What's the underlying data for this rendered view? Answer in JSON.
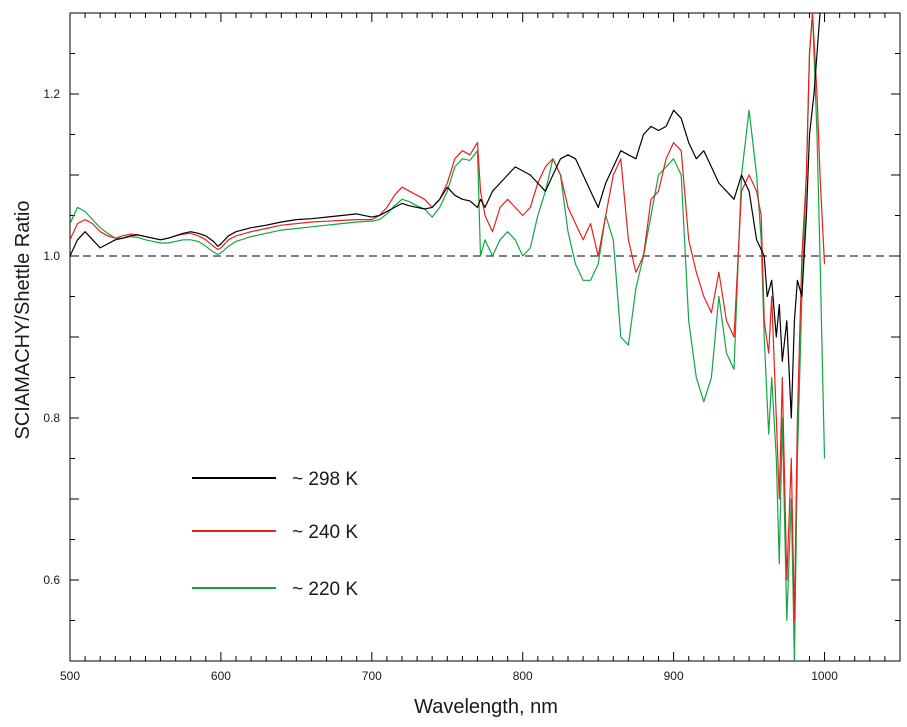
{
  "chart_data": {
    "type": "line",
    "title": "",
    "xlabel": "Wavelength, nm",
    "ylabel": "SCIAMACHY/Shettle Ratio",
    "xlim": [
      500,
      1050
    ],
    "ylim": [
      0.5,
      1.3
    ],
    "x_ticks": [
      500,
      600,
      700,
      800,
      900,
      1000
    ],
    "y_ticks": [
      0.6,
      0.8,
      1.0,
      1.2
    ],
    "reference_line": {
      "y": 1.0,
      "style": "dashed"
    },
    "grid": false,
    "legend_position": "bottom-left",
    "series": [
      {
        "name": "~ 298 K",
        "color": "#000000",
        "x": [
          500,
          505,
          510,
          515,
          520,
          525,
          530,
          535,
          540,
          545,
          550,
          555,
          560,
          565,
          570,
          575,
          580,
          585,
          590,
          595,
          598,
          600,
          605,
          610,
          620,
          630,
          640,
          650,
          660,
          670,
          680,
          690,
          700,
          705,
          710,
          715,
          720,
          725,
          730,
          735,
          740,
          745,
          750,
          755,
          760,
          765,
          770,
          772,
          775,
          780,
          785,
          790,
          795,
          800,
          805,
          810,
          815,
          820,
          825,
          830,
          835,
          840,
          845,
          850,
          855,
          860,
          865,
          870,
          875,
          880,
          885,
          890,
          895,
          900,
          905,
          910,
          915,
          920,
          925,
          930,
          935,
          940,
          945,
          950,
          955,
          960,
          962,
          965,
          968,
          970,
          972,
          975,
          978,
          980,
          982,
          985,
          988,
          990,
          993,
          995,
          997,
          1000
        ],
        "y": [
          1.0,
          1.02,
          1.03,
          1.02,
          1.01,
          1.015,
          1.02,
          1.022,
          1.025,
          1.026,
          1.024,
          1.022,
          1.02,
          1.022,
          1.025,
          1.028,
          1.03,
          1.028,
          1.025,
          1.018,
          1.012,
          1.015,
          1.025,
          1.03,
          1.035,
          1.038,
          1.042,
          1.045,
          1.046,
          1.048,
          1.05,
          1.052,
          1.048,
          1.05,
          1.055,
          1.06,
          1.065,
          1.062,
          1.06,
          1.058,
          1.06,
          1.07,
          1.085,
          1.075,
          1.07,
          1.068,
          1.06,
          1.07,
          1.06,
          1.08,
          1.09,
          1.1,
          1.11,
          1.105,
          1.1,
          1.09,
          1.08,
          1.1,
          1.12,
          1.125,
          1.12,
          1.1,
          1.08,
          1.06,
          1.09,
          1.11,
          1.13,
          1.125,
          1.12,
          1.15,
          1.16,
          1.155,
          1.16,
          1.18,
          1.17,
          1.14,
          1.12,
          1.13,
          1.11,
          1.09,
          1.08,
          1.07,
          1.1,
          1.08,
          1.02,
          1.0,
          0.95,
          0.97,
          0.9,
          0.94,
          0.87,
          0.92,
          0.8,
          0.92,
          0.97,
          0.95,
          1.05,
          1.15,
          1.2,
          1.25,
          1.3,
          1.32
        ]
      },
      {
        "name": "~ 240 K",
        "color": "#e8201c",
        "x": [
          500,
          505,
          510,
          515,
          520,
          525,
          530,
          535,
          540,
          545,
          550,
          555,
          560,
          565,
          570,
          575,
          580,
          585,
          590,
          595,
          598,
          600,
          605,
          610,
          620,
          630,
          640,
          650,
          660,
          670,
          680,
          690,
          700,
          705,
          710,
          715,
          720,
          725,
          730,
          735,
          740,
          745,
          750,
          755,
          760,
          765,
          770,
          772,
          775,
          780,
          785,
          790,
          795,
          800,
          805,
          810,
          815,
          820,
          825,
          830,
          835,
          840,
          845,
          850,
          855,
          860,
          865,
          870,
          875,
          880,
          885,
          890,
          895,
          900,
          905,
          910,
          915,
          920,
          925,
          930,
          935,
          940,
          945,
          950,
          955,
          958,
          960,
          963,
          965,
          968,
          970,
          972,
          975,
          978,
          980,
          982,
          985,
          988,
          990,
          992,
          995,
          997,
          1000
        ],
        "y": [
          1.02,
          1.04,
          1.045,
          1.04,
          1.03,
          1.025,
          1.022,
          1.025,
          1.027,
          1.026,
          1.024,
          1.022,
          1.02,
          1.022,
          1.025,
          1.027,
          1.028,
          1.025,
          1.02,
          1.012,
          1.008,
          1.01,
          1.02,
          1.025,
          1.03,
          1.034,
          1.038,
          1.04,
          1.042,
          1.043,
          1.044,
          1.045,
          1.045,
          1.05,
          1.06,
          1.075,
          1.085,
          1.08,
          1.075,
          1.07,
          1.06,
          1.07,
          1.09,
          1.12,
          1.13,
          1.125,
          1.14,
          1.08,
          1.05,
          1.03,
          1.06,
          1.07,
          1.06,
          1.05,
          1.06,
          1.09,
          1.11,
          1.12,
          1.1,
          1.06,
          1.04,
          1.02,
          1.04,
          1.0,
          1.05,
          1.1,
          1.12,
          1.02,
          0.98,
          1.0,
          1.07,
          1.08,
          1.12,
          1.14,
          1.13,
          1.02,
          0.98,
          0.95,
          0.93,
          0.98,
          0.92,
          0.9,
          1.08,
          1.1,
          1.08,
          1.05,
          0.92,
          0.88,
          0.95,
          0.8,
          0.7,
          0.85,
          0.6,
          0.75,
          0.55,
          0.8,
          1.0,
          1.1,
          1.25,
          1.3,
          1.2,
          1.1,
          0.99
        ]
      },
      {
        "name": "~ 220 K",
        "color": "#12a543",
        "x": [
          500,
          505,
          510,
          515,
          520,
          525,
          530,
          535,
          540,
          545,
          550,
          555,
          560,
          565,
          570,
          575,
          580,
          585,
          590,
          595,
          598,
          600,
          605,
          610,
          620,
          630,
          640,
          650,
          660,
          670,
          680,
          690,
          700,
          705,
          710,
          715,
          720,
          725,
          730,
          735,
          740,
          745,
          750,
          755,
          760,
          765,
          770,
          772,
          775,
          780,
          785,
          790,
          795,
          800,
          805,
          810,
          815,
          820,
          825,
          830,
          835,
          840,
          845,
          850,
          855,
          860,
          865,
          870,
          875,
          880,
          885,
          890,
          895,
          900,
          905,
          910,
          915,
          920,
          925,
          930,
          935,
          940,
          945,
          950,
          955,
          958,
          960,
          963,
          965,
          968,
          970,
          972,
          975,
          978,
          980,
          982,
          985,
          988,
          990,
          992,
          995,
          997,
          1000
        ],
        "y": [
          1.04,
          1.06,
          1.055,
          1.045,
          1.035,
          1.028,
          1.022,
          1.022,
          1.024,
          1.023,
          1.02,
          1.018,
          1.016,
          1.016,
          1.018,
          1.02,
          1.02,
          1.018,
          1.012,
          1.005,
          1.002,
          1.004,
          1.012,
          1.018,
          1.024,
          1.028,
          1.032,
          1.034,
          1.036,
          1.038,
          1.04,
          1.042,
          1.043,
          1.045,
          1.052,
          1.062,
          1.07,
          1.067,
          1.062,
          1.058,
          1.048,
          1.06,
          1.08,
          1.11,
          1.12,
          1.118,
          1.13,
          1.0,
          1.02,
          1.0,
          1.02,
          1.03,
          1.02,
          1.0,
          1.01,
          1.05,
          1.08,
          1.12,
          1.1,
          1.03,
          0.99,
          0.97,
          0.97,
          0.99,
          1.05,
          1.02,
          0.9,
          0.89,
          0.96,
          1.0,
          1.05,
          1.1,
          1.11,
          1.12,
          1.1,
          0.92,
          0.85,
          0.82,
          0.85,
          0.95,
          0.88,
          0.86,
          1.1,
          1.18,
          1.1,
          1.02,
          0.9,
          0.78,
          0.85,
          0.75,
          0.62,
          0.8,
          0.55,
          0.7,
          0.5,
          0.75,
          0.95,
          1.1,
          1.25,
          1.3,
          1.15,
          1.0,
          0.75
        ]
      }
    ]
  }
}
